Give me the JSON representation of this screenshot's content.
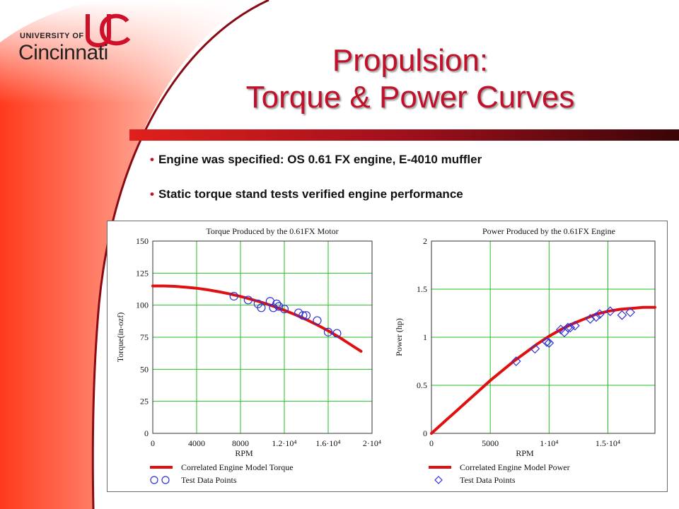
{
  "slide": {
    "title_line1": "Propulsion:",
    "title_line2": "Torque & Power Curves",
    "bullets": [
      "Engine was specified: OS 0.61 FX engine, E-4010 muffler",
      "Static torque stand tests verified engine performance"
    ]
  },
  "logo": {
    "university_of": "UNIVERSITY OF",
    "name": "Cincinnati"
  },
  "colors": {
    "accent": "#c0102a",
    "dark_red": "#5a0b14",
    "model_line": "#e01010",
    "test_points": "#3030d8",
    "grid": "#22c022"
  },
  "chart_data": [
    {
      "type": "scatter",
      "title": "Torque Produced by the 0.61FX Motor",
      "xlabel": "RPM",
      "ylabel": "Torque(in-ozf)",
      "xlim": [
        0,
        20000
      ],
      "ylim": [
        0,
        150
      ],
      "xticks": [
        {
          "value": 0,
          "label": "0"
        },
        {
          "value": 4000,
          "label": "4000"
        },
        {
          "value": 8000,
          "label": "8000"
        },
        {
          "value": 12000,
          "label": "1.2·10⁴"
        },
        {
          "value": 16000,
          "label": "1.6·10⁴"
        },
        {
          "value": 20000,
          "label": "2·10⁴"
        }
      ],
      "yticks": [
        0,
        25,
        50,
        75,
        100,
        125,
        150
      ],
      "grid": true,
      "legend_position": "bottom",
      "series": [
        {
          "name": "Correlated Engine Model Torque",
          "kind": "line",
          "x": [
            0,
            1000,
            2000,
            3000,
            4000,
            5000,
            6000,
            7000,
            8000,
            9000,
            10000,
            11000,
            12000,
            13000,
            14000,
            15000,
            16000,
            17000,
            18000,
            19000
          ],
          "y": [
            115,
            115,
            114.7,
            114,
            113.2,
            112,
            110.5,
            108.8,
            106.8,
            104.5,
            102,
            99.2,
            96,
            92.6,
            88.8,
            84.6,
            80,
            75,
            69.5,
            64
          ]
        },
        {
          "name": "Test Data Points",
          "kind": "circle-markers",
          "x": [
            7400,
            8700,
            9600,
            9900,
            10700,
            11000,
            11300,
            11500,
            12000,
            13300,
            13700,
            14000,
            15000,
            16000,
            16800
          ],
          "y": [
            107,
            104,
            101,
            98,
            103,
            98,
            101,
            99,
            97,
            94,
            92,
            92,
            88,
            79,
            78
          ]
        }
      ]
    },
    {
      "type": "scatter",
      "title": "Power Produced by the 0.61FX Engine",
      "xlabel": "RPM",
      "ylabel": "Power (hp)",
      "xlim": [
        0,
        19000
      ],
      "ylim": [
        0,
        2
      ],
      "xticks": [
        {
          "value": 0,
          "label": "0"
        },
        {
          "value": 5000,
          "label": "5000"
        },
        {
          "value": 10000,
          "label": "1·10⁴"
        },
        {
          "value": 15000,
          "label": "1.5·10⁴"
        }
      ],
      "yticks": [
        {
          "value": 0,
          "label": "0"
        },
        {
          "value": 0.5,
          "label": "0.5"
        },
        {
          "value": 1,
          "label": "1"
        },
        {
          "value": 1.5,
          "label": "1.5"
        },
        {
          "value": 2,
          "label": "2"
        }
      ],
      "grid": true,
      "legend_position": "bottom",
      "series": [
        {
          "name": "Correlated Engine Model Power",
          "kind": "line",
          "x": [
            0,
            1000,
            2000,
            3000,
            4000,
            5000,
            6000,
            7000,
            8000,
            9000,
            10000,
            11000,
            12000,
            13000,
            14000,
            15000,
            16000,
            17000,
            18000,
            19000
          ],
          "y": [
            0,
            0.11,
            0.22,
            0.33,
            0.44,
            0.55,
            0.65,
            0.75,
            0.84,
            0.93,
            1.01,
            1.08,
            1.14,
            1.19,
            1.24,
            1.27,
            1.29,
            1.3,
            1.31,
            1.31
          ]
        },
        {
          "name": "Test Data Points",
          "kind": "diamond-markers",
          "x": [
            7200,
            8800,
            9800,
            10000,
            11000,
            11300,
            11600,
            11800,
            12200,
            13500,
            14000,
            14300,
            15200,
            16200,
            16900
          ],
          "y": [
            0.75,
            0.88,
            0.95,
            0.94,
            1.08,
            1.05,
            1.1,
            1.1,
            1.12,
            1.19,
            1.21,
            1.24,
            1.27,
            1.23,
            1.26
          ]
        }
      ]
    }
  ]
}
